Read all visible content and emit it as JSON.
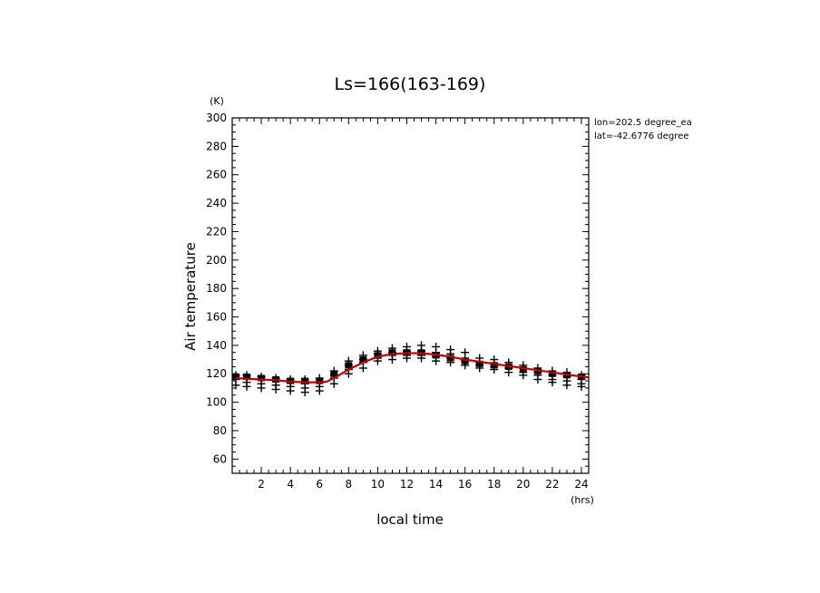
{
  "chart_data": {
    "type": "scatter",
    "title": "Ls=166(163-169)",
    "xlabel": "local time",
    "ylabel": "Air temperature",
    "x_unit": "(hrs)",
    "y_unit": "(K)",
    "xlim": [
      0,
      24.5
    ],
    "ylim": [
      50,
      300
    ],
    "x_ticks": [
      2,
      4,
      6,
      8,
      10,
      12,
      14,
      16,
      18,
      20,
      22,
      24
    ],
    "y_ticks": [
      60,
      80,
      100,
      120,
      140,
      160,
      180,
      200,
      220,
      240,
      260,
      280,
      300
    ],
    "annotations": [
      "lon=202.5 degree_ea",
      "lat=-42.6776 degree"
    ],
    "grid": false,
    "series": [
      {
        "marker": "plus",
        "color": "#000000",
        "points": [
          [
            0.25,
            119
          ],
          [
            0.25,
            116
          ],
          [
            0.25,
            112
          ],
          [
            1.0,
            119
          ],
          [
            1.0,
            117
          ],
          [
            1.0,
            114
          ],
          [
            1.0,
            111
          ],
          [
            2.0,
            118
          ],
          [
            2.0,
            116
          ],
          [
            2.0,
            113
          ],
          [
            2.0,
            110
          ],
          [
            3.0,
            117
          ],
          [
            3.0,
            115
          ],
          [
            3.0,
            112
          ],
          [
            3.0,
            109
          ],
          [
            4.0,
            116
          ],
          [
            4.0,
            114
          ],
          [
            4.0,
            111
          ],
          [
            4.0,
            108
          ],
          [
            5.0,
            116
          ],
          [
            5.0,
            113
          ],
          [
            5.0,
            110
          ],
          [
            5.0,
            107
          ],
          [
            6.0,
            117
          ],
          [
            6.0,
            114
          ],
          [
            6.0,
            111
          ],
          [
            6.0,
            108
          ],
          [
            7.0,
            122
          ],
          [
            7.0,
            119
          ],
          [
            7.0,
            117
          ],
          [
            7.0,
            113
          ],
          [
            8.0,
            129
          ],
          [
            8.0,
            126
          ],
          [
            8.0,
            123
          ],
          [
            8.0,
            120
          ],
          [
            9.0,
            133
          ],
          [
            9.0,
            130
          ],
          [
            9.0,
            128
          ],
          [
            9.0,
            124
          ],
          [
            10.0,
            136
          ],
          [
            10.0,
            134
          ],
          [
            10.0,
            131
          ],
          [
            10.0,
            129
          ],
          [
            11.0,
            138
          ],
          [
            11.0,
            135
          ],
          [
            11.0,
            133
          ],
          [
            11.0,
            130
          ],
          [
            12.0,
            139
          ],
          [
            12.0,
            136
          ],
          [
            12.0,
            133
          ],
          [
            12.0,
            131
          ],
          [
            13.0,
            140
          ],
          [
            13.0,
            136
          ],
          [
            13.0,
            133
          ],
          [
            13.0,
            131
          ],
          [
            14.0,
            139
          ],
          [
            14.0,
            135
          ],
          [
            14.0,
            132
          ],
          [
            14.0,
            129
          ],
          [
            15.0,
            137
          ],
          [
            15.0,
            134
          ],
          [
            15.0,
            131
          ],
          [
            15.0,
            128
          ],
          [
            16.0,
            135
          ],
          [
            16.0,
            131
          ],
          [
            16.0,
            129
          ],
          [
            16.0,
            126
          ],
          [
            17.0,
            131
          ],
          [
            17.0,
            128
          ],
          [
            17.0,
            126
          ],
          [
            17.0,
            124
          ],
          [
            18.0,
            130
          ],
          [
            18.0,
            127
          ],
          [
            18.0,
            125
          ],
          [
            18.0,
            123
          ],
          [
            19.0,
            128
          ],
          [
            19.0,
            126
          ],
          [
            19.0,
            124
          ],
          [
            19.0,
            121
          ],
          [
            20.0,
            126
          ],
          [
            20.0,
            124
          ],
          [
            20.0,
            121
          ],
          [
            20.0,
            119
          ],
          [
            21.0,
            124
          ],
          [
            21.0,
            121
          ],
          [
            21.0,
            119
          ],
          [
            21.0,
            116
          ],
          [
            22.0,
            122
          ],
          [
            22.0,
            119
          ],
          [
            22.0,
            116
          ],
          [
            22.0,
            114
          ],
          [
            23.0,
            121
          ],
          [
            23.0,
            118
          ],
          [
            23.0,
            115
          ],
          [
            23.0,
            112
          ],
          [
            24.0,
            119
          ],
          [
            24.0,
            116
          ],
          [
            24.0,
            113
          ],
          [
            24.0,
            111
          ]
        ]
      },
      {
        "marker": "square",
        "color": "#000000",
        "points": [
          [
            0.25,
            118
          ],
          [
            1.0,
            118
          ],
          [
            2.0,
            117
          ],
          [
            3.0,
            116
          ],
          [
            4.0,
            115
          ],
          [
            5.0,
            115
          ],
          [
            6.0,
            115
          ],
          [
            7.0,
            120
          ],
          [
            8.0,
            126
          ],
          [
            9.0,
            130
          ],
          [
            10.0,
            133
          ],
          [
            11.0,
            135
          ],
          [
            12.0,
            135
          ],
          [
            13.0,
            135
          ],
          [
            14.0,
            133
          ],
          [
            15.0,
            131
          ],
          [
            16.0,
            129
          ],
          [
            17.0,
            127
          ],
          [
            18.0,
            126
          ],
          [
            19.0,
            125
          ],
          [
            20.0,
            123
          ],
          [
            21.0,
            122
          ],
          [
            22.0,
            120
          ],
          [
            23.0,
            119
          ],
          [
            24.0,
            118
          ]
        ]
      },
      {
        "type": "line",
        "color": "#cc0000",
        "x": [
          0.25,
          1,
          2,
          3,
          4,
          5,
          6,
          6.5,
          7,
          8,
          9,
          10,
          11,
          12,
          13,
          14,
          15,
          16,
          17,
          18,
          19,
          20,
          21,
          22,
          23,
          24,
          24.5
        ],
        "y": [
          117,
          116.5,
          116,
          115.5,
          114.5,
          114,
          114,
          114.5,
          117,
          123,
          128,
          132,
          134,
          134.5,
          134.5,
          133.5,
          132,
          130,
          128.5,
          127,
          125.5,
          124,
          122.5,
          121,
          119.5,
          118,
          117.5
        ]
      }
    ]
  }
}
